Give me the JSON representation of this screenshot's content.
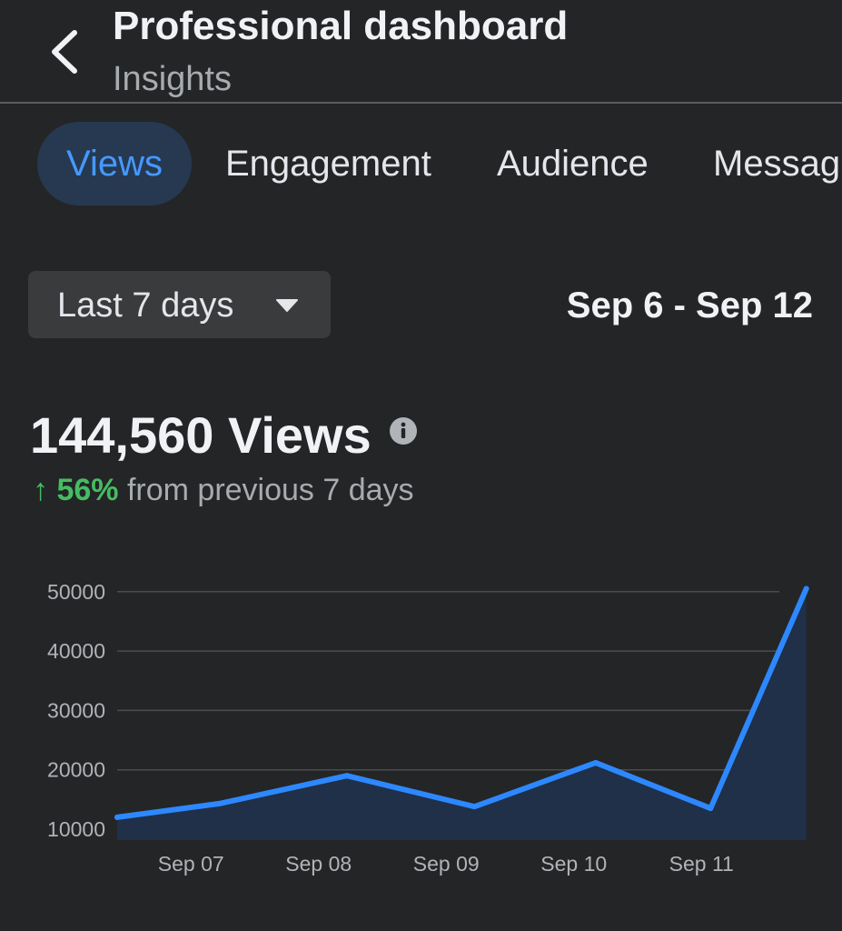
{
  "header": {
    "title": "Professional dashboard",
    "subtitle": "Insights",
    "back_icon": "chevron-left-icon"
  },
  "tabs": [
    {
      "label": "Views",
      "active": true
    },
    {
      "label": "Engagement",
      "active": false
    },
    {
      "label": "Audience",
      "active": false
    },
    {
      "label": "Messag",
      "active": false
    }
  ],
  "filters": {
    "range_label": "Last 7 days",
    "range_icon": "caret-down-icon",
    "date_range": "Sep 6 - Sep 12"
  },
  "summary": {
    "total": "144,560 Views",
    "info_icon": "info-icon",
    "change_arrow": "↑",
    "change_percent": "56%",
    "change_text": "from previous 7 days"
  },
  "colors": {
    "background": "#242526",
    "accent": "#4599ff",
    "line": "#2d88ff",
    "area": "#1f3048",
    "positive": "#45bd62",
    "grid": "#4a4c4f"
  },
  "chart_data": {
    "type": "line",
    "x_ticks": [
      "Sep 07",
      "Sep 08",
      "Sep 09",
      "Sep 10",
      "Sep 11"
    ],
    "y_ticks": [
      "50000",
      "40000",
      "30000",
      "20000",
      "10000"
    ],
    "ylim": [
      10000,
      50000
    ],
    "grid": true,
    "series": [
      {
        "points": [
          {
            "x": 6.5,
            "y": 12000
          },
          {
            "x": 7.3,
            "y": 14300
          },
          {
            "x": 8.3,
            "y": 19000
          },
          {
            "x": 9.3,
            "y": 13800
          },
          {
            "x": 10.25,
            "y": 21200
          },
          {
            "x": 11.15,
            "y": 13500
          },
          {
            "x": 11.9,
            "y": 50500
          }
        ]
      }
    ]
  }
}
